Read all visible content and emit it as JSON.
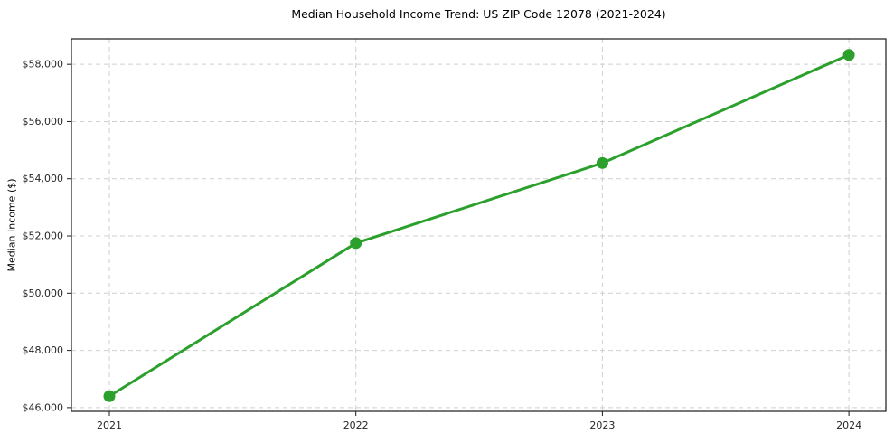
{
  "chart_data": {
    "type": "line",
    "title": "Median Household Income Trend: US ZIP Code 12078 (2021-2024)",
    "xlabel": "",
    "ylabel": "Median Income ($)",
    "x": [
      2021,
      2022,
      2023,
      2024
    ],
    "x_tick_labels": [
      "2021",
      "2022",
      "2023",
      "2024"
    ],
    "series": [
      {
        "name": "Median Household Income",
        "values": [
          46400,
          51750,
          54550,
          58330
        ]
      }
    ],
    "y_ticks": [
      46000,
      48000,
      50000,
      52000,
      54000,
      56000,
      58000
    ],
    "y_tick_labels": [
      "$46,000",
      "$48,000",
      "$50,000",
      "$52,000",
      "$54,000",
      "$56,000",
      "$58,000"
    ],
    "ylim": [
      45870,
      58890
    ],
    "xlim": [
      2020.846,
      2024.15
    ],
    "grid": true,
    "grid_style": "dashed",
    "legend": false,
    "colors": {
      "line": "#2ca02c",
      "marker": "#2ca02c",
      "grid": "#cfcfcf",
      "spine": "#1a1a1a",
      "tick_text": "#262626",
      "background": "#ffffff"
    }
  }
}
